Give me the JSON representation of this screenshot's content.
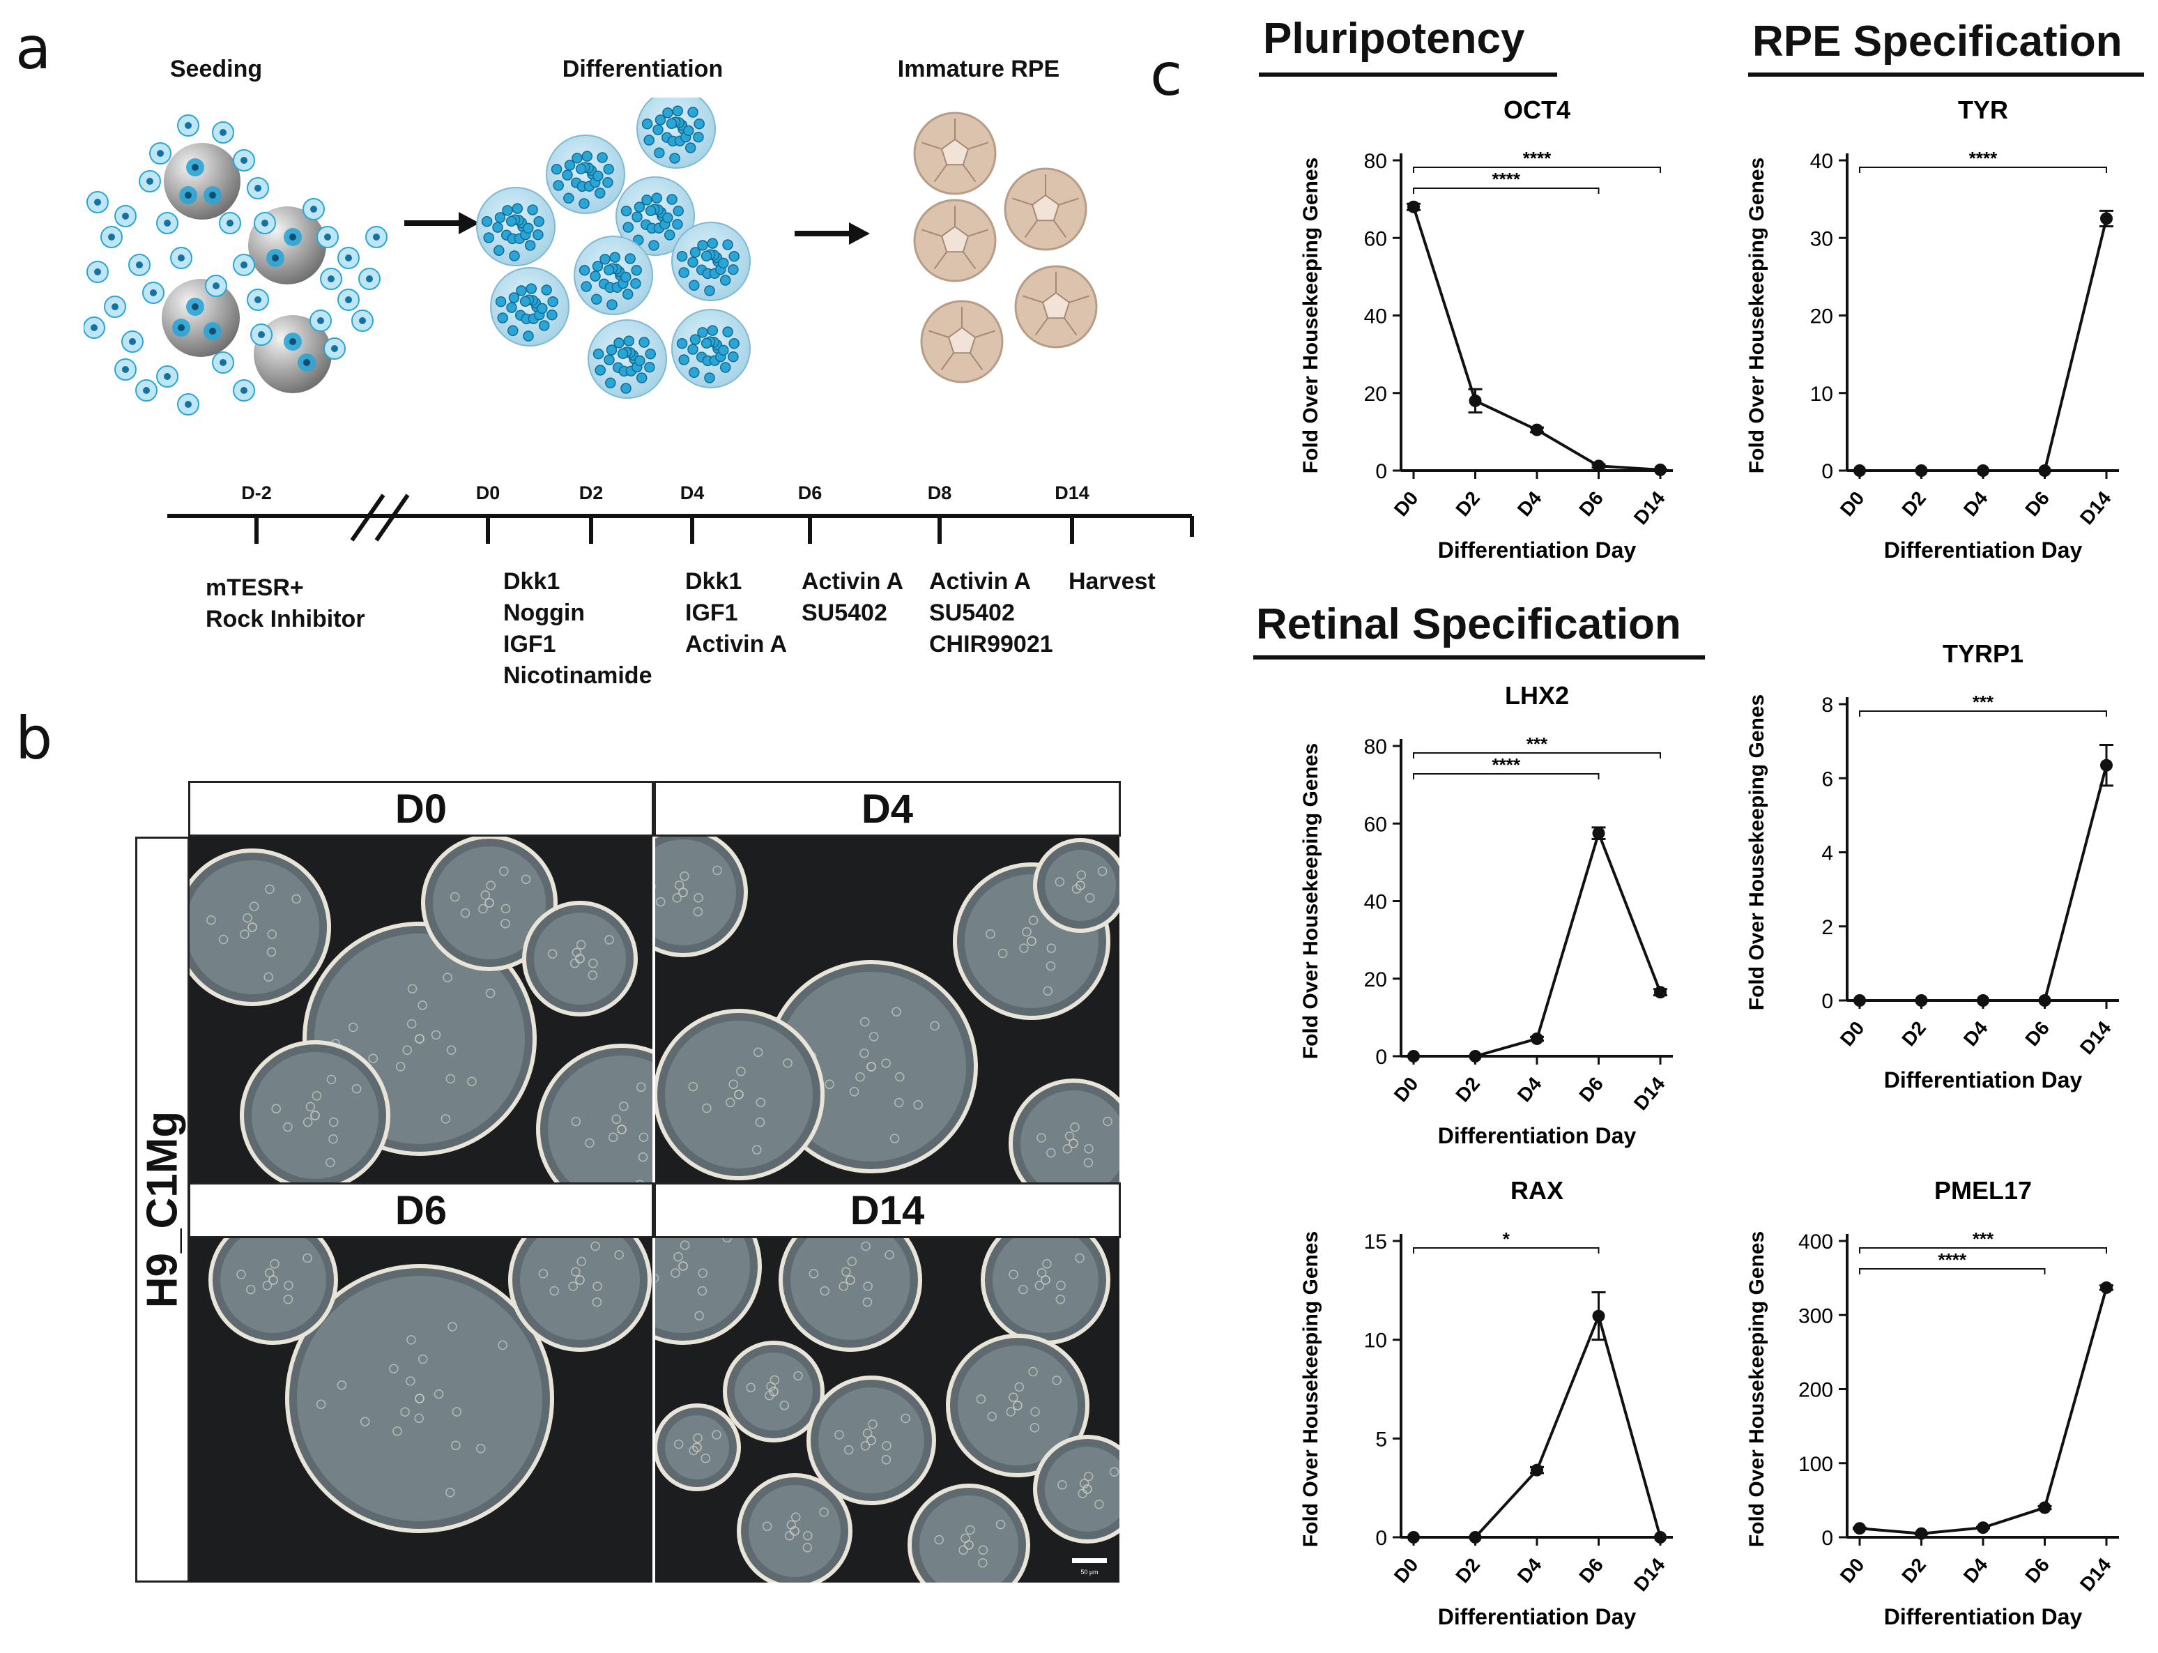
{
  "panels": {
    "a": "a",
    "b": "b",
    "c": "c"
  },
  "schematic": {
    "steps": [
      "Seeding",
      "Differentiation",
      "Immature RPE"
    ],
    "colors": {
      "cell": "#2aa6d6",
      "cell_light": "#bfe6f5",
      "bead": "#8e8e8e",
      "rpe": "#dcc3ae"
    }
  },
  "timeline": {
    "days": [
      "D-2",
      "D0",
      "D2",
      "D4",
      "D6",
      "D8",
      "D14"
    ],
    "treatments": [
      "mTESR+\nRock Inhibitor",
      "Dkk1\nNoggin\nIGF1\nNicotinamide",
      "Dkk1\nIGF1\nActivin A",
      "Activin A\nSU5402",
      "Activin A\nSU5402\nCHIR99021",
      "Harvest"
    ]
  },
  "micrographs": {
    "row_label": "H9_C1Mg",
    "panels": [
      "D0",
      "D4",
      "D6",
      "D14"
    ],
    "scale_bar": "50 µm"
  },
  "sections": {
    "pluripotency": "Pluripotency",
    "rpe": "RPE Specification",
    "retinal": "Retinal Specification"
  },
  "chart_data": [
    {
      "type": "line",
      "title": "OCT4",
      "xlabel": "Differentiation Day",
      "ylabel": "Fold Over Housekeeping Genes",
      "categories": [
        "D0",
        "D2",
        "D4",
        "D6",
        "D14"
      ],
      "values": [
        68,
        18,
        10.5,
        1.2,
        0.2
      ],
      "errors": [
        0.8,
        3,
        0.6,
        0.4,
        0.1
      ],
      "ylim": [
        0,
        80
      ],
      "yticks": [
        0,
        20,
        40,
        60,
        80
      ],
      "significance": [
        {
          "from": "D0",
          "to": "D6",
          "label": "****"
        },
        {
          "from": "D0",
          "to": "D14",
          "label": "****"
        }
      ]
    },
    {
      "type": "line",
      "title": "TYR",
      "xlabel": "Differentiation Day",
      "ylabel": "Fold Over Housekeeping Genes",
      "categories": [
        "D0",
        "D2",
        "D4",
        "D6",
        "D14"
      ],
      "values": [
        0,
        0,
        0,
        0,
        32.5
      ],
      "errors": [
        0,
        0,
        0,
        0,
        1
      ],
      "ylim": [
        0,
        40
      ],
      "yticks": [
        0,
        10,
        20,
        30,
        40
      ],
      "significance": [
        {
          "from": "D0",
          "to": "D14",
          "label": "****"
        }
      ]
    },
    {
      "type": "line",
      "title": "LHX2",
      "xlabel": "Differentiation Day",
      "ylabel": "Fold Over Housekeeping Genes",
      "categories": [
        "D0",
        "D2",
        "D4",
        "D6",
        "D14"
      ],
      "values": [
        0,
        0,
        4.5,
        57.5,
        16.5
      ],
      "errors": [
        0,
        0,
        0.5,
        1.5,
        0.8
      ],
      "ylim": [
        0,
        80
      ],
      "yticks": [
        0,
        20,
        40,
        60,
        80
      ],
      "significance": [
        {
          "from": "D0",
          "to": "D6",
          "label": "****"
        },
        {
          "from": "D0",
          "to": "D14",
          "label": "***"
        }
      ]
    },
    {
      "type": "line",
      "title": "TYRP1",
      "xlabel": "Differentiation Day",
      "ylabel": "Fold Over Housekeeping Genes",
      "categories": [
        "D0",
        "D2",
        "D4",
        "D6",
        "D14"
      ],
      "values": [
        0,
        0,
        0,
        0,
        6.35
      ],
      "errors": [
        0,
        0,
        0,
        0,
        0.55
      ],
      "ylim": [
        0,
        8
      ],
      "yticks": [
        0,
        2,
        4,
        6,
        8
      ],
      "significance": [
        {
          "from": "D0",
          "to": "D14",
          "label": "***"
        }
      ]
    },
    {
      "type": "line",
      "title": "RAX",
      "xlabel": "Differentiation Day",
      "ylabel": "Fold Over Housekeeping Genes",
      "categories": [
        "D0",
        "D2",
        "D4",
        "D6",
        "D14"
      ],
      "values": [
        0,
        0,
        3.4,
        11.2,
        0
      ],
      "errors": [
        0,
        0,
        0.15,
        1.2,
        0
      ],
      "ylim": [
        0,
        15
      ],
      "yticks": [
        0,
        5,
        10,
        15
      ],
      "significance": [
        {
          "from": "D0",
          "to": "D6",
          "label": "*"
        }
      ]
    },
    {
      "type": "line",
      "title": "PMEL17",
      "xlabel": "Differentiation Day",
      "ylabel": "Fold Over Housekeeping Genes",
      "categories": [
        "D0",
        "D2",
        "D4",
        "D6",
        "D14"
      ],
      "values": [
        12,
        5,
        13,
        40,
        337
      ],
      "errors": [
        1,
        1,
        1,
        2,
        3
      ],
      "ylim": [
        0,
        400
      ],
      "yticks": [
        0,
        100,
        200,
        300,
        400
      ],
      "significance": [
        {
          "from": "D0",
          "to": "D6",
          "label": "****"
        },
        {
          "from": "D0",
          "to": "D14",
          "label": "***"
        }
      ]
    }
  ]
}
